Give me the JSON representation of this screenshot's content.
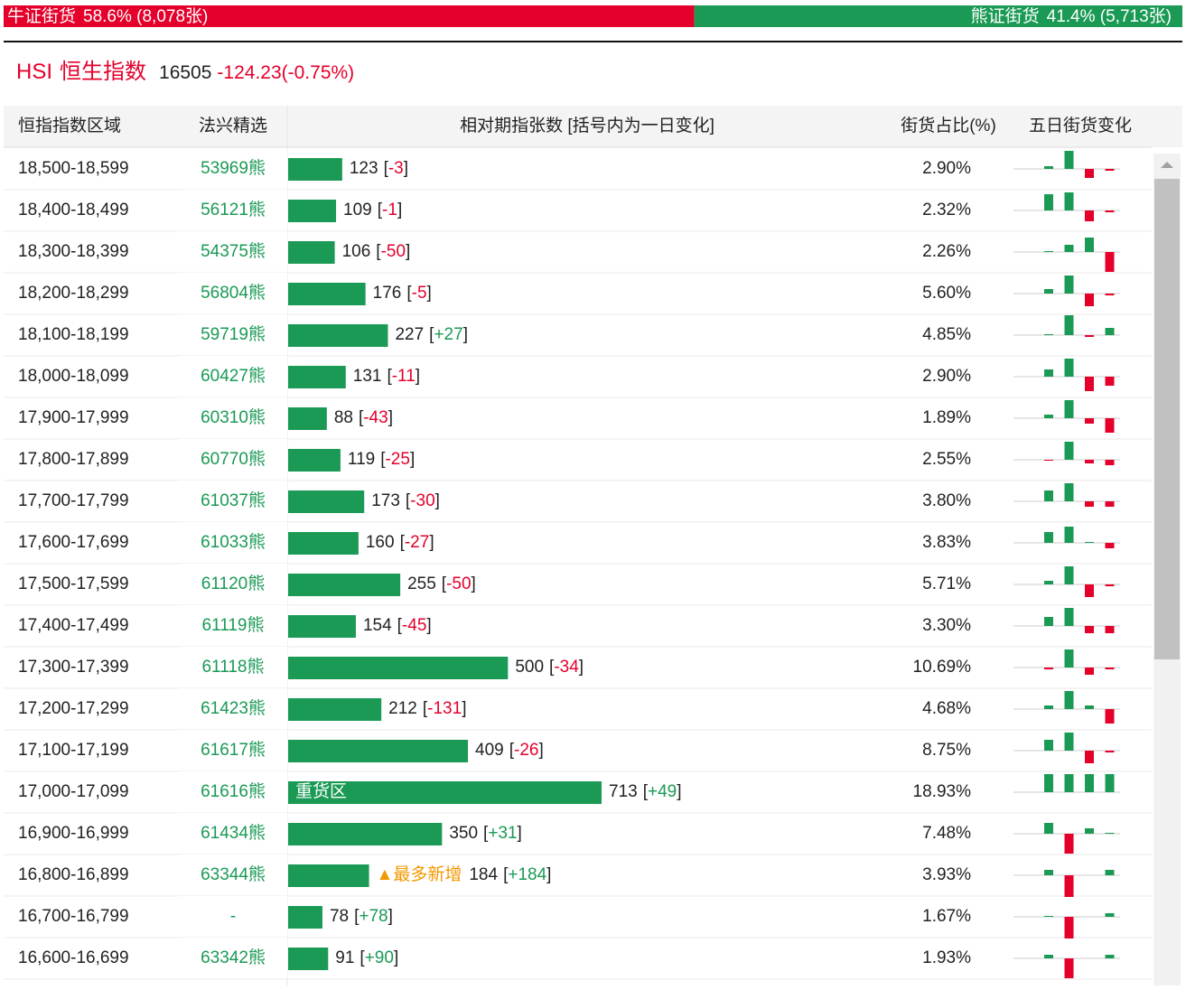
{
  "summary": {
    "bull": {
      "label": "牛证街货",
      "share": 58.6,
      "text": "58.6% (8,078张)"
    },
    "bear": {
      "label": "熊证街货",
      "share": 41.4,
      "text": "41.4% (5,713张)"
    }
  },
  "index": {
    "code": "HSI",
    "name": "恒生指数",
    "level": "16505",
    "change": "-124.23(-0.75%)"
  },
  "table": {
    "headers": [
      "恒指指数区域",
      "法兴精选",
      "相对期指张数 [括号内为一日变化]",
      "街货占比(%)",
      "五日街货变化"
    ],
    "rows": [
      {
        "range": "18,500-18,599",
        "pick": "53969熊",
        "count": 123,
        "change": "-3",
        "share": "2.90%",
        "five_day": [
          3,
          20,
          -10,
          -2
        ]
      },
      {
        "range": "18,400-18,499",
        "pick": "56121熊",
        "count": 109,
        "change": "-1",
        "share": "2.32%",
        "five_day": [
          18,
          20,
          -12,
          -2
        ]
      },
      {
        "range": "18,300-18,399",
        "pick": "54375熊",
        "count": 106,
        "change": "-50",
        "share": "2.26%",
        "five_day": [
          1,
          8,
          16,
          -22
        ]
      },
      {
        "range": "18,200-18,299",
        "pick": "56804熊",
        "count": 176,
        "change": "-5",
        "share": "5.60%",
        "five_day": [
          5,
          20,
          -14,
          -2
        ]
      },
      {
        "range": "18,100-18,199",
        "pick": "59719熊",
        "count": 227,
        "change": "+27",
        "share": "4.85%",
        "five_day": [
          1,
          22,
          -2,
          8
        ]
      },
      {
        "range": "18,000-18,099",
        "pick": "60427熊",
        "count": 131,
        "change": "-11",
        "share": "2.90%",
        "five_day": [
          8,
          20,
          -16,
          -10
        ]
      },
      {
        "range": "17,900-17,999",
        "pick": "60310熊",
        "count": 88,
        "change": "-43",
        "share": "1.89%",
        "five_day": [
          4,
          20,
          -6,
          -16
        ]
      },
      {
        "range": "17,800-17,899",
        "pick": "60770熊",
        "count": 119,
        "change": "-25",
        "share": "2.55%",
        "five_day": [
          -1,
          20,
          -4,
          -6
        ]
      },
      {
        "range": "17,700-17,799",
        "pick": "61037熊",
        "count": 173,
        "change": "-30",
        "share": "3.80%",
        "five_day": [
          12,
          20,
          -6,
          -6
        ]
      },
      {
        "range": "17,600-17,699",
        "pick": "61033熊",
        "count": 160,
        "change": "-27",
        "share": "3.83%",
        "five_day": [
          12,
          18,
          1,
          -6
        ]
      },
      {
        "range": "17,500-17,599",
        "pick": "61120熊",
        "count": 255,
        "change": "-50",
        "share": "5.71%",
        "five_day": [
          4,
          20,
          -14,
          -2
        ]
      },
      {
        "range": "17,400-17,499",
        "pick": "61119熊",
        "count": 154,
        "change": "-45",
        "share": "3.30%",
        "five_day": [
          10,
          20,
          -8,
          -8
        ]
      },
      {
        "range": "17,300-17,399",
        "pick": "61118熊",
        "count": 500,
        "change": "-34",
        "share": "10.69%",
        "five_day": [
          -2,
          20,
          -8,
          -2
        ]
      },
      {
        "range": "17,200-17,299",
        "pick": "61423熊",
        "count": 212,
        "change": "-131",
        "share": "4.68%",
        "five_day": [
          4,
          20,
          4,
          -16
        ]
      },
      {
        "range": "17,100-17,199",
        "pick": "61617熊",
        "count": 409,
        "change": "-26",
        "share": "8.75%",
        "five_day": [
          12,
          20,
          -14,
          -2
        ]
      },
      {
        "range": "17,000-17,099",
        "pick": "61616熊",
        "count": 713,
        "change": "+49",
        "share": "18.93%",
        "five_day": [
          20,
          20,
          20,
          20
        ],
        "tag": "重货区"
      },
      {
        "range": "16,900-16,999",
        "pick": "61434熊",
        "count": 350,
        "change": "+31",
        "share": "7.48%",
        "five_day": [
          12,
          -22,
          6,
          1
        ]
      },
      {
        "range": "16,800-16,899",
        "pick": "63344熊",
        "count": 184,
        "change": "+184",
        "share": "3.93%",
        "five_day": [
          6,
          -24,
          0,
          6
        ],
        "note": "▲最多新增"
      },
      {
        "range": "16,700-16,799",
        "pick": "-",
        "count": 78,
        "change": "+78",
        "share": "1.67%",
        "five_day": [
          1,
          -24,
          0,
          4
        ]
      },
      {
        "range": "16,600-16,699",
        "pick": "63342熊",
        "count": 91,
        "change": "+90",
        "share": "1.93%",
        "five_day": [
          4,
          -22,
          0,
          4
        ]
      }
    ]
  }
}
